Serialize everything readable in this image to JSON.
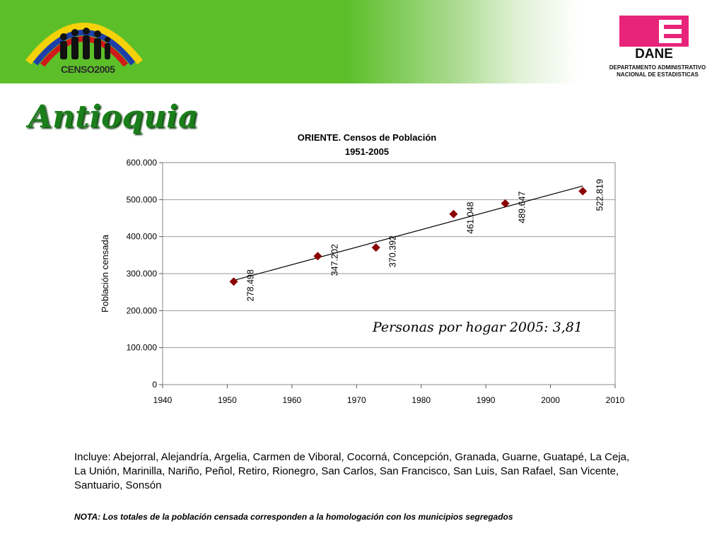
{
  "header": {
    "censo_logo_text": "CENSO2005",
    "dane_logo_text": "DANE",
    "dane_caption_line1": "DEPARTAMENTO ADMINISTRATIVO",
    "dane_caption_line2": "NACIONAL DE ESTADISTICAS",
    "banner_color": "#5cbf2a",
    "dane_color": "#e8247a"
  },
  "region_title": "Antioquia",
  "chart_data": {
    "type": "scatter",
    "title_line1": "ORIENTE. Censos de Población",
    "title_line2": "1951-2005",
    "ylabel": "Población censada",
    "xlabel": "",
    "xlim": [
      1940,
      2010
    ],
    "ylim": [
      0,
      600000
    ],
    "x_ticks": [
      "1940",
      "1950",
      "1960",
      "1970",
      "1980",
      "1990",
      "2000",
      "2010"
    ],
    "y_ticks": [
      "0",
      "100.000",
      "200.000",
      "300.000",
      "400.000",
      "500.000",
      "600.000"
    ],
    "grid": true,
    "trendline": true,
    "marker_color": "#8b0000",
    "points": [
      {
        "x": 1951,
        "y": 278498,
        "label": "278.498"
      },
      {
        "x": 1964,
        "y": 347202,
        "label": "347.202"
      },
      {
        "x": 1973,
        "y": 370392,
        "label": "370.392"
      },
      {
        "x": 1985,
        "y": 461048,
        "label": "461.048"
      },
      {
        "x": 1993,
        "y": 489647,
        "label": "489.647"
      },
      {
        "x": 2005,
        "y": 522819,
        "label": "522.819"
      }
    ],
    "annotation": "Personas por hogar 2005: 3,81"
  },
  "includes_text": "Incluye: Abejorral, Alejandría, Argelia, Carmen de Viboral, Cocorná, Concepción, Granada, Guarne, Guatapé, La Ceja, La Unión, Marinilla, Nariño, Peñol, Retiro, Rionegro, San Carlos, San Francisco, San Luis, San Rafael, San Vicente, Santuario, Sonsón",
  "note_text": "NOTA: Los totales de la población censada corresponden a la homologación con los municipios segregados"
}
